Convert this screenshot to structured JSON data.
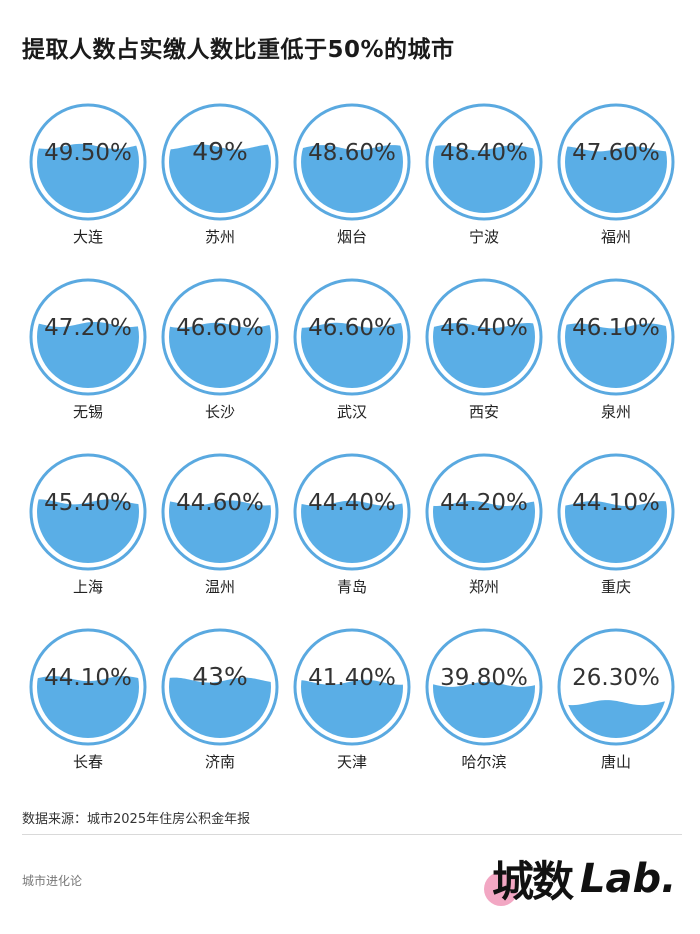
{
  "title": "提取人数占实缴人数比重低于50%的城市",
  "source": "数据来源：城市2025年住房公积金年报",
  "footer": {
    "left": "城市进化论",
    "brand_cn": "城数",
    "brand_en": "Lab."
  },
  "colors": {
    "ring": "#5aa9e0",
    "water": "#5aaee6",
    "label": "#333333"
  },
  "chart_data": {
    "type": "liquid-fill",
    "title": "提取人数占实缴人数比重低于50%的城市",
    "ylim": [
      0,
      100
    ],
    "items": [
      {
        "city": "大连",
        "value": 49.5,
        "label": "49.50%"
      },
      {
        "city": "苏州",
        "value": 49.0,
        "label": "49%"
      },
      {
        "city": "烟台",
        "value": 48.6,
        "label": "48.60%"
      },
      {
        "city": "宁波",
        "value": 48.4,
        "label": "48.40%"
      },
      {
        "city": "福州",
        "value": 47.6,
        "label": "47.60%"
      },
      {
        "city": "无锡",
        "value": 47.2,
        "label": "47.20%"
      },
      {
        "city": "长沙",
        "value": 46.6,
        "label": "46.60%"
      },
      {
        "city": "武汉",
        "value": 46.6,
        "label": "46.60%"
      },
      {
        "city": "西安",
        "value": 46.4,
        "label": "46.40%"
      },
      {
        "city": "泉州",
        "value": 46.1,
        "label": "46.10%"
      },
      {
        "city": "上海",
        "value": 45.4,
        "label": "45.40%"
      },
      {
        "city": "温州",
        "value": 44.6,
        "label": "44.60%"
      },
      {
        "city": "青岛",
        "value": 44.4,
        "label": "44.40%"
      },
      {
        "city": "郑州",
        "value": 44.2,
        "label": "44.20%"
      },
      {
        "city": "重庆",
        "value": 44.1,
        "label": "44.10%"
      },
      {
        "city": "长春",
        "value": 44.1,
        "label": "44.10%"
      },
      {
        "city": "济南",
        "value": 43.0,
        "label": "43%"
      },
      {
        "city": "天津",
        "value": 41.4,
        "label": "41.40%"
      },
      {
        "city": "哈尔滨",
        "value": 39.8,
        "label": "39.80%"
      },
      {
        "city": "唐山",
        "value": 26.3,
        "label": "26.30%"
      }
    ]
  }
}
